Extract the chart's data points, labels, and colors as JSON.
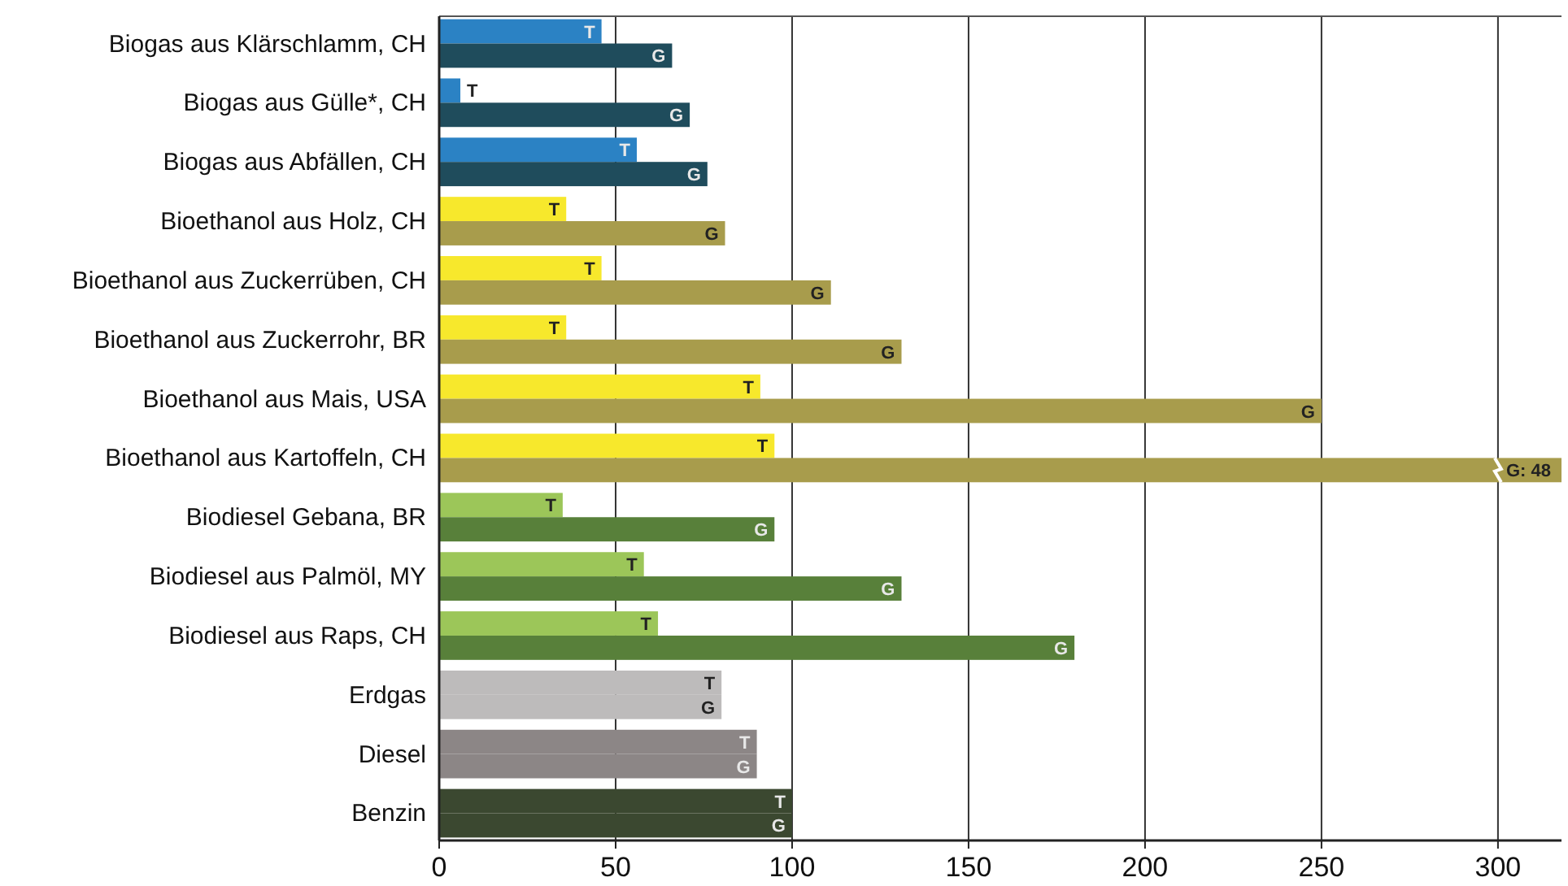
{
  "chart_data": {
    "type": "bar",
    "orientation": "horizontal",
    "categories": [
      "Biogas aus Klärschlamm, CH",
      "Biogas aus Gülle*, CH",
      "Biogas aus Abfällen, CH",
      "Bioethanol aus Holz, CH",
      "Bioethanol aus Zuckerrüben, CH",
      "Bioethanol aus Zuckerrohr, BR",
      "Bioethanol aus Mais, USA",
      "Bioethanol aus Kartoffeln, CH",
      "Biodiesel Gebana, BR",
      "Biodiesel aus Palmöl, MY",
      "Biodiesel aus Raps, CH",
      "Erdgas",
      "Diesel",
      "Benzin"
    ],
    "series": [
      {
        "colors": [
          "#2b82c4",
          "#2b82c4",
          "#2b82c4",
          "#f7e82c",
          "#f7e82c",
          "#f7e82c",
          "#f7e82c",
          "#f7e82c",
          "#9cc659",
          "#9cc659",
          "#9cc659",
          "#bdbbbb",
          "#8c8686",
          "#3b4830"
        ],
        "values": [
          46,
          6,
          56,
          36,
          46,
          36,
          91,
          95,
          35,
          58,
          62,
          80,
          90,
          100
        ],
        "value_labels": [
          "T",
          "T",
          "T",
          "T",
          "T",
          "T",
          "T",
          "T",
          "T",
          "T",
          "T",
          "T",
          "T",
          "T"
        ]
      },
      {
        "colors": [
          "#1f4c5c",
          "#1f4c5c",
          "#1f4c5c",
          "#a89c4c",
          "#a89c4c",
          "#a89c4c",
          "#a89c4c",
          "#a89c4c",
          "#58803a",
          "#58803a",
          "#58803a",
          "#bdbbbb",
          "#8c8686",
          "#3b4830"
        ],
        "values": [
          66,
          71,
          76,
          81,
          111,
          131,
          250,
          318,
          95,
          131,
          180,
          80,
          90,
          100
        ],
        "value_labels": [
          "G",
          "G",
          "G",
          "G",
          "G",
          "G",
          "G",
          null,
          "G",
          "G",
          "G",
          "G",
          "G",
          "G"
        ]
      }
    ],
    "annotations": [
      {
        "text": "G: 48",
        "x": 300,
        "y": "Bioethanol aus Kartoffeln, CH"
      }
    ],
    "xlim": [
      0,
      318
    ],
    "xticks": [
      0,
      50,
      100,
      150,
      200,
      250,
      300
    ],
    "grid": "x"
  }
}
